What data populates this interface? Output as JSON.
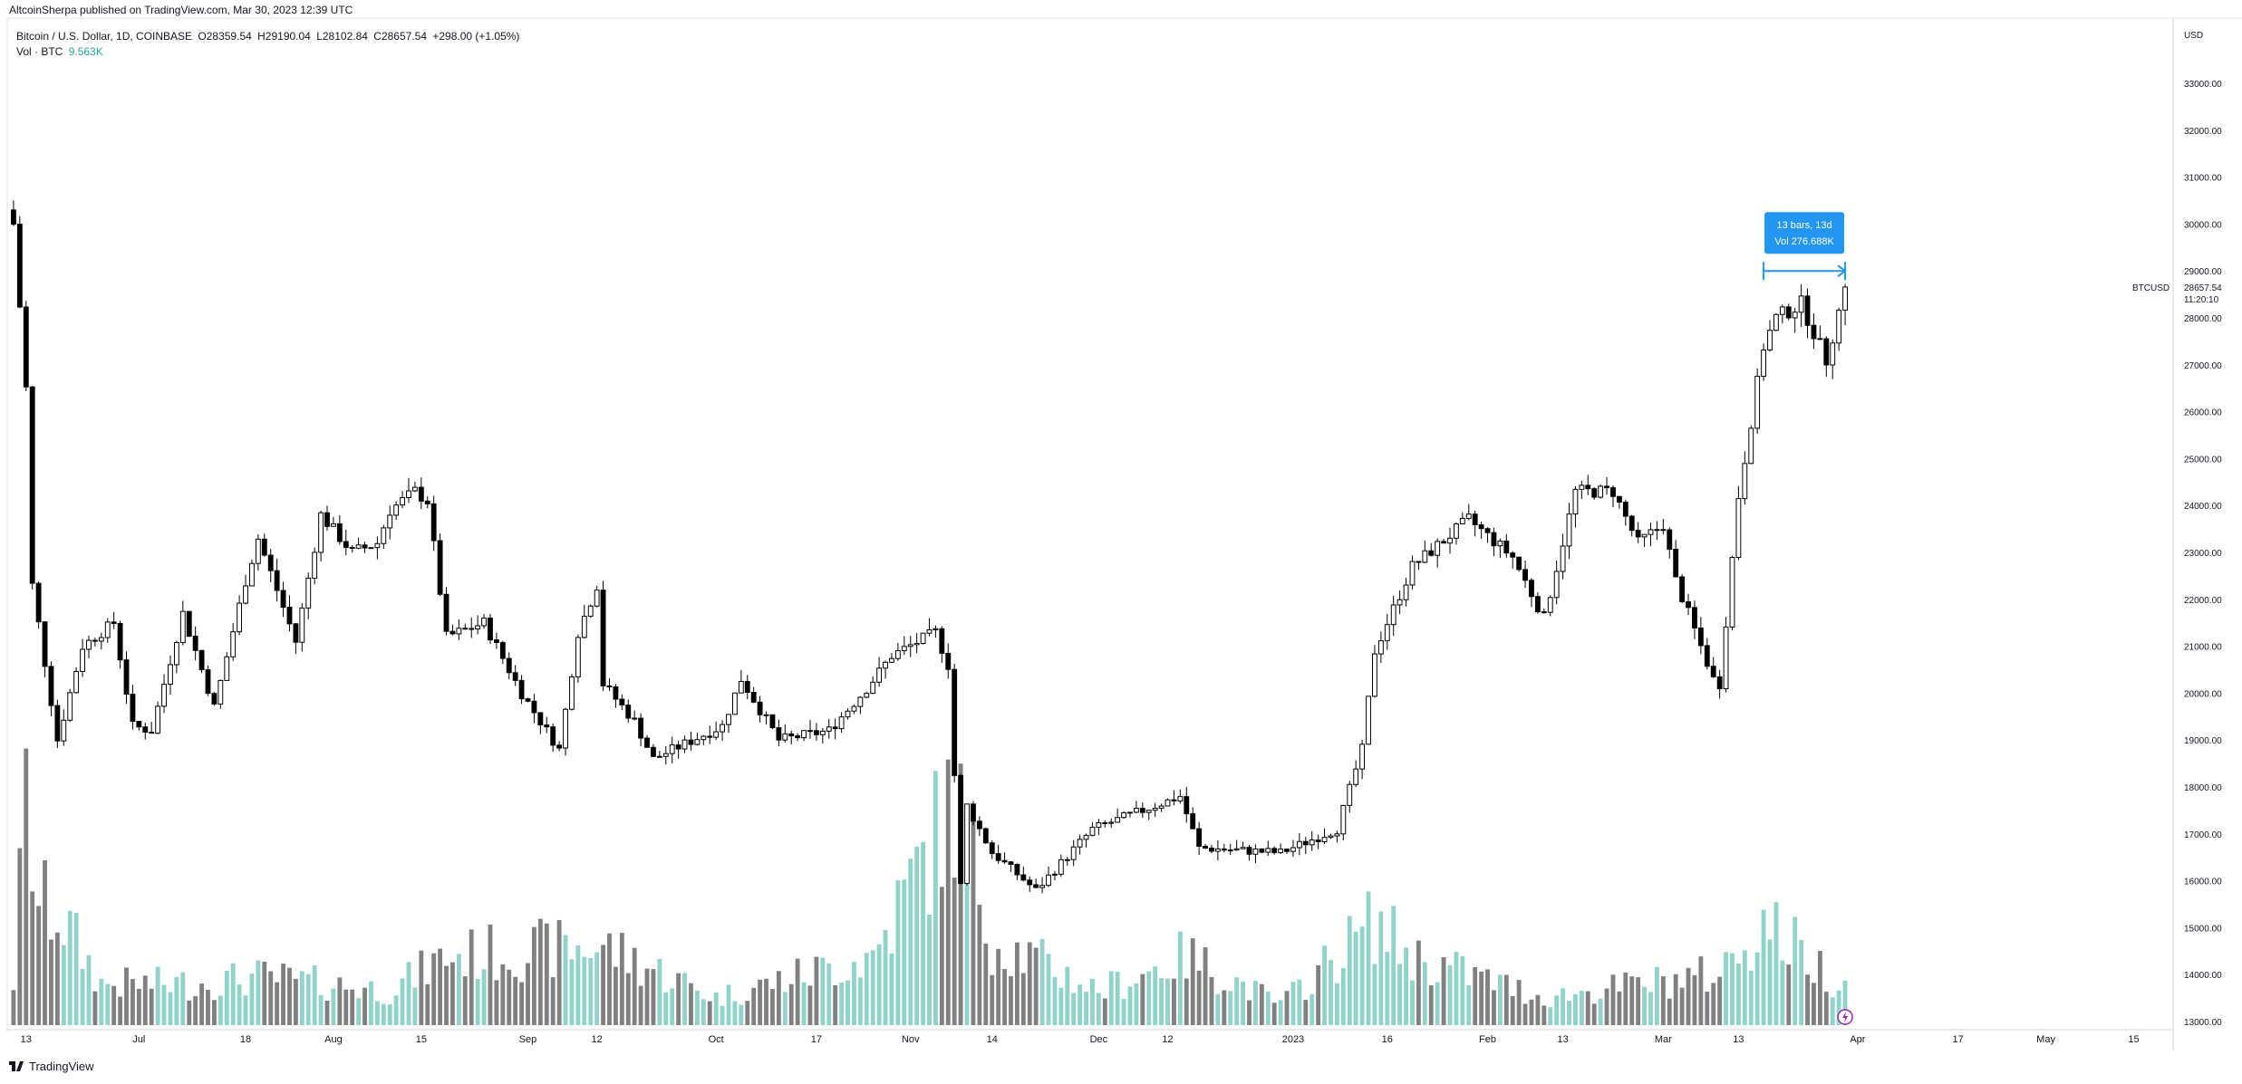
{
  "publish_line": "AltcoinSherpa published on TradingView.com, Mar 30, 2023 12:39 UTC",
  "symbol_line": {
    "name": "Bitcoin / U.S. Dollar, 1D, COINBASE",
    "open": "O28359.54",
    "high": "H29190.04",
    "low": "L28102.84",
    "close": "C28657.54",
    "change": "+298.00 (+1.05%)"
  },
  "volume_line": {
    "label": "Vol · BTC",
    "value": "9.563K"
  },
  "footer_brand": "TradingView",
  "colors": {
    "candle_up_fill": "#ffffff",
    "candle_down_fill": "#000000",
    "vol_up": "#8fd3cb",
    "vol_down": "#808080",
    "measure": "#2196f3"
  },
  "chart_data": {
    "type": "candlestick",
    "currency": "USD",
    "symbol_label": "BTCUSD",
    "last_price": "28657.54",
    "countdown": "11:20:10",
    "ylim": [
      13000,
      34000
    ],
    "y_ticks": [
      "33000.00",
      "32000.00",
      "31000.00",
      "30000.00",
      "29000.00",
      "28000.00",
      "27000.00",
      "26000.00",
      "25000.00",
      "24000.00",
      "23000.00",
      "22000.00",
      "21000.00",
      "20000.00",
      "19000.00",
      "18000.00",
      "17000.00",
      "16000.00",
      "15000.00",
      "14000.00",
      "13000.00"
    ],
    "x_range": [
      "2022-06-10",
      "2023-05-21"
    ],
    "x_ticks": [
      {
        "label": "13",
        "date": "2022-06-13"
      },
      {
        "label": "Jul",
        "date": "2022-07-01"
      },
      {
        "label": "18",
        "date": "2022-07-18"
      },
      {
        "label": "Aug",
        "date": "2022-08-01"
      },
      {
        "label": "15",
        "date": "2022-08-15"
      },
      {
        "label": "Sep",
        "date": "2022-09-01"
      },
      {
        "label": "12",
        "date": "2022-09-12"
      },
      {
        "label": "Oct",
        "date": "2022-10-01"
      },
      {
        "label": "17",
        "date": "2022-10-17"
      },
      {
        "label": "Nov",
        "date": "2022-11-01"
      },
      {
        "label": "14",
        "date": "2022-11-14"
      },
      {
        "label": "Dec",
        "date": "2022-12-01"
      },
      {
        "label": "12",
        "date": "2022-12-12"
      },
      {
        "label": "2023",
        "date": "2023-01-01"
      },
      {
        "label": "16",
        "date": "2023-01-16"
      },
      {
        "label": "Feb",
        "date": "2023-02-01"
      },
      {
        "label": "13",
        "date": "2023-02-13"
      },
      {
        "label": "Mar",
        "date": "2023-03-01"
      },
      {
        "label": "13",
        "date": "2023-03-13"
      },
      {
        "label": "Apr",
        "date": "2023-04-01"
      },
      {
        "label": "17",
        "date": "2023-04-17"
      },
      {
        "label": "May",
        "date": "2023-05-01"
      },
      {
        "label": "15",
        "date": "2023-05-15"
      }
    ],
    "start_date": "2022-06-11",
    "price_anchors": [
      [
        "2022-06-11",
        30000
      ],
      [
        "2022-06-13",
        26500
      ],
      [
        "2022-06-14",
        22300
      ],
      [
        "2022-06-18",
        19000
      ],
      [
        "2022-06-22",
        21000
      ],
      [
        "2022-06-27",
        21500
      ],
      [
        "2022-06-30",
        19300
      ],
      [
        "2022-07-03",
        19200
      ],
      [
        "2022-07-08",
        21700
      ],
      [
        "2022-07-13",
        19700
      ],
      [
        "2022-07-18",
        22400
      ],
      [
        "2022-07-20",
        23300
      ],
      [
        "2022-07-26",
        21100
      ],
      [
        "2022-07-30",
        23800
      ],
      [
        "2022-08-04",
        23000
      ],
      [
        "2022-08-08",
        23200
      ],
      [
        "2022-08-10",
        23900
      ],
      [
        "2022-08-14",
        24300
      ],
      [
        "2022-08-16",
        24100
      ],
      [
        "2022-08-19",
        21200
      ],
      [
        "2022-08-25",
        21500
      ],
      [
        "2022-08-31",
        20000
      ],
      [
        "2022-09-06",
        18800
      ],
      [
        "2022-09-09",
        21300
      ],
      [
        "2022-09-12",
        22300
      ],
      [
        "2022-09-13",
        20200
      ],
      [
        "2022-09-18",
        19400
      ],
      [
        "2022-09-21",
        18600
      ],
      [
        "2022-10-02",
        19300
      ],
      [
        "2022-10-05",
        20300
      ],
      [
        "2022-10-11",
        19000
      ],
      [
        "2022-10-19",
        19200
      ],
      [
        "2022-10-25",
        20100
      ],
      [
        "2022-10-29",
        20800
      ],
      [
        "2022-11-05",
        21300
      ],
      [
        "2022-11-07",
        20600
      ],
      [
        "2022-11-09",
        15900
      ],
      [
        "2022-11-10",
        17600
      ],
      [
        "2022-11-14",
        16600
      ],
      [
        "2022-11-21",
        15800
      ],
      [
        "2022-11-30",
        17100
      ],
      [
        "2022-12-14",
        17800
      ],
      [
        "2022-12-17",
        16700
      ],
      [
        "2022-12-30",
        16600
      ],
      [
        "2023-01-08",
        17100
      ],
      [
        "2023-01-12",
        18800
      ],
      [
        "2023-01-14",
        20900
      ],
      [
        "2023-01-20",
        22700
      ],
      [
        "2023-01-29",
        23700
      ],
      [
        "2023-02-05",
        22900
      ],
      [
        "2023-02-10",
        21600
      ],
      [
        "2023-02-15",
        24300
      ],
      [
        "2023-02-21",
        24300
      ],
      [
        "2023-02-25",
        23200
      ],
      [
        "2023-03-01",
        23600
      ],
      [
        "2023-03-03",
        22400
      ],
      [
        "2023-03-09",
        20300
      ],
      [
        "2023-03-10",
        20200
      ],
      [
        "2023-03-13",
        24200
      ],
      [
        "2023-03-17",
        27400
      ],
      [
        "2023-03-19",
        28000
      ],
      [
        "2023-03-23",
        28300
      ],
      [
        "2023-03-27",
        27100
      ],
      [
        "2023-03-30",
        28657.54
      ]
    ],
    "volume_anchors": [
      [
        "2022-06-11",
        1.3
      ],
      [
        "2022-06-13",
        6.5
      ],
      [
        "2022-06-15",
        3.5
      ],
      [
        "2022-06-18",
        3.3
      ],
      [
        "2022-06-25",
        1.2
      ],
      [
        "2022-07-10",
        1.2
      ],
      [
        "2022-07-20",
        1.4
      ],
      [
        "2022-08-10",
        1.0
      ],
      [
        "2022-08-19",
        2.0
      ],
      [
        "2022-09-13",
        2.3
      ],
      [
        "2022-10-01",
        0.8
      ],
      [
        "2022-10-26",
        2.0
      ],
      [
        "2022-11-08",
        6.5
      ],
      [
        "2022-11-10",
        5.5
      ],
      [
        "2022-11-14",
        2.5
      ],
      [
        "2022-12-01",
        1.0
      ],
      [
        "2022-12-15",
        2.0
      ],
      [
        "2022-12-30",
        0.6
      ],
      [
        "2023-01-14",
        3.0
      ],
      [
        "2023-01-20",
        2.0
      ],
      [
        "2023-02-10",
        0.8
      ],
      [
        "2023-03-10",
        1.5
      ],
      [
        "2023-03-13",
        2.2
      ],
      [
        "2023-03-17",
        3.0
      ],
      [
        "2023-03-30",
        1.1
      ]
    ],
    "measure": {
      "start": "2022-03-17",
      "start_date": "2023-03-17",
      "end_date": "2023-03-30",
      "price": 29000,
      "label_line1": "13 bars, 13d",
      "label_line2": "Vol 276.688K"
    }
  }
}
